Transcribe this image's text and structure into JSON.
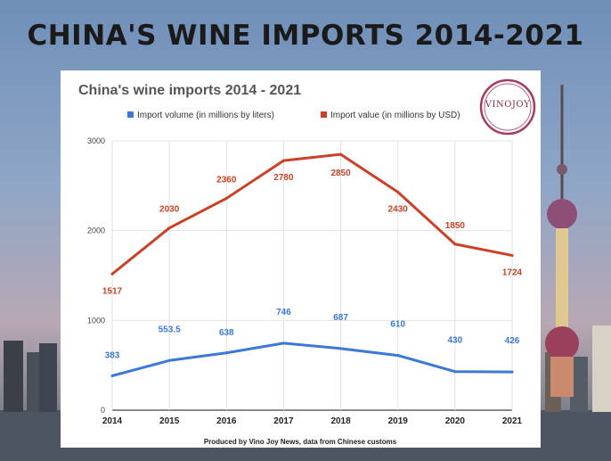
{
  "banner_title": "CHINA'S WINE IMPORTS 2014-2021",
  "logo_text": "VINOJOY",
  "chart_data": {
    "type": "line",
    "title": "China's wine imports 2014 - 2021",
    "footnote": "Produced by Vino Joy News, data from Chinese customs",
    "x": [
      "2014",
      "2015",
      "2016",
      "2017",
      "2018",
      "2019",
      "2020",
      "2021"
    ],
    "ylim": [
      0,
      3000
    ],
    "yticks": [
      "0",
      "1000",
      "2000",
      "3000"
    ],
    "grid": true,
    "legend_position": "top",
    "series": [
      {
        "name": "Import volume (in millions by liters)",
        "color": "#3c78d8",
        "values": [
          383,
          553.5,
          638,
          746,
          687,
          610,
          430,
          426
        ],
        "labels": [
          "383",
          "553.5",
          "638",
          "746",
          "687",
          "610",
          "430",
          "426"
        ]
      },
      {
        "name": "Import value (in millions by USD)",
        "color": "#cc4125",
        "values": [
          1517,
          2030,
          2360,
          2780,
          2850,
          2430,
          1850,
          1724
        ],
        "labels": [
          "1517",
          "2030",
          "2360",
          "2780",
          "2850",
          "2430",
          "1850",
          "1724"
        ]
      }
    ]
  }
}
